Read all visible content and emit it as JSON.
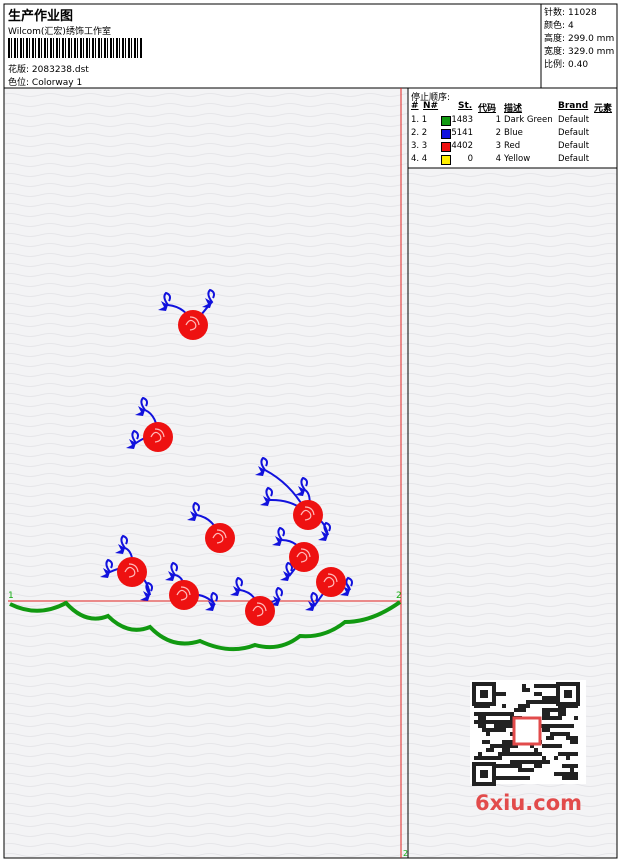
{
  "header": {
    "title": "生产作业图",
    "software": "Wilcom(汇宏)绣饰工作室",
    "design_label": "花版:",
    "design": "2083238.dst",
    "colorway_label": "色位:",
    "colorway": "Colorway 1"
  },
  "stats": [
    {
      "label": "针数:",
      "value": "11028"
    },
    {
      "label": "颜色:",
      "value": "4"
    },
    {
      "label": "高度:",
      "value": "299.0 mm"
    },
    {
      "label": "宽度:",
      "value": "329.0 mm"
    },
    {
      "label": "比例:",
      "value": "0.40"
    }
  ],
  "stop_sequence": {
    "title": "停止顺序:",
    "columns": [
      "#",
      "N#",
      "St.",
      "代码",
      "描述",
      "Brand",
      "元素"
    ],
    "rows": [
      {
        "index": "1. 1",
        "color": "#119911",
        "stitches": "1483",
        "code": "1",
        "description": "Dark Green",
        "brand": "Default"
      },
      {
        "index": "2. 2",
        "color": "#1111dd",
        "stitches": "5141",
        "code": "2",
        "description": "Blue",
        "brand": "Default"
      },
      {
        "index": "3. 3",
        "color": "#ee1111",
        "stitches": "4402",
        "code": "3",
        "description": "Red",
        "brand": "Default"
      },
      {
        "index": "4. 4",
        "color": "#ffee00",
        "stitches": "0",
        "code": "4",
        "description": "Yellow",
        "brand": "Default"
      }
    ]
  },
  "markers": {
    "start": "1",
    "end": "2",
    "corner": "2"
  },
  "watermark": "6xiu.com"
}
